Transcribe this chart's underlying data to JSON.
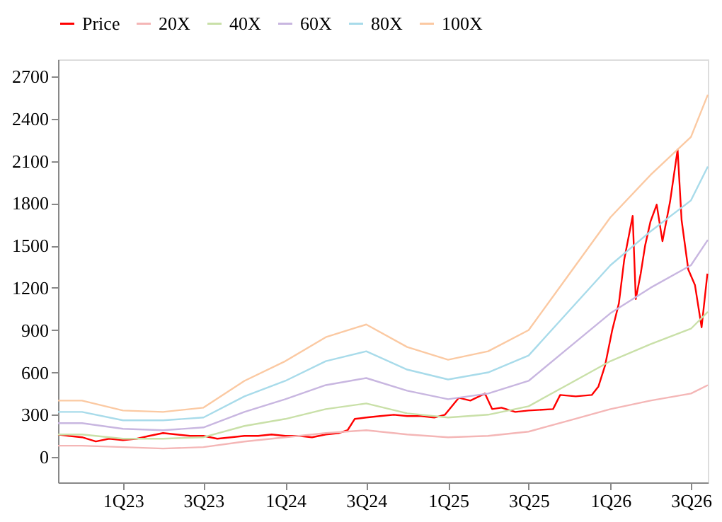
{
  "chart_data": {
    "type": "line",
    "xlim": [
      "2022-08-08",
      "2026-08-08"
    ],
    "xticks": [
      {
        "value": "2023-01-01",
        "label": "1Q23"
      },
      {
        "value": "2023-07-01",
        "label": "3Q23"
      },
      {
        "value": "2024-01-01",
        "label": "1Q24"
      },
      {
        "value": "2024-07-01",
        "label": "3Q24"
      },
      {
        "value": "2025-01-01",
        "label": "1Q25"
      },
      {
        "value": "2025-07-01",
        "label": "3Q25"
      },
      {
        "value": "2026-01-01",
        "label": "1Q26"
      },
      {
        "value": "2026-07-01",
        "label": "3Q26"
      }
    ],
    "ylim": [
      -180,
      2820
    ],
    "yticks": [
      0,
      300,
      600,
      900,
      1200,
      1500,
      1800,
      2100,
      2400,
      2700
    ],
    "grid": false,
    "legend": "top",
    "line_style": "solid",
    "marker": "none",
    "series": [
      {
        "name": "Price",
        "color": "#ff0000",
        "x": [
          "2022-08-08",
          "2022-09-01",
          "2022-10-01",
          "2022-11-01",
          "2022-12-01",
          "2023-01-01",
          "2023-02-01",
          "2023-03-01",
          "2023-04-01",
          "2023-05-01",
          "2023-06-01",
          "2023-07-01",
          "2023-08-01",
          "2023-09-01",
          "2023-10-01",
          "2023-11-01",
          "2023-12-01",
          "2024-01-01",
          "2024-02-01",
          "2024-03-01",
          "2024-04-01",
          "2024-05-01",
          "2024-05-20",
          "2024-06-05",
          "2024-07-01",
          "2024-08-01",
          "2024-09-01",
          "2024-10-01",
          "2024-11-01",
          "2024-12-01",
          "2024-12-25",
          "2025-01-25",
          "2025-02-20",
          "2025-03-25",
          "2025-04-10",
          "2025-05-01",
          "2025-06-01",
          "2025-07-01",
          "2025-08-25",
          "2025-09-10",
          "2025-10-15",
          "2025-11-20",
          "2025-12-05",
          "2025-12-20",
          "2026-01-05",
          "2026-01-20",
          "2026-02-01",
          "2026-02-20",
          "2026-02-27",
          "2026-03-10",
          "2026-03-20",
          "2026-04-01",
          "2026-04-15",
          "2026-04-28",
          "2026-05-15",
          "2026-06-01",
          "2026-06-10",
          "2026-06-25",
          "2026-07-10",
          "2026-07-25",
          "2026-08-07"
        ],
        "values": [
          160,
          150,
          140,
          110,
          130,
          120,
          130,
          150,
          170,
          160,
          150,
          150,
          130,
          140,
          150,
          150,
          160,
          150,
          150,
          140,
          160,
          170,
          190,
          270,
          280,
          290,
          300,
          290,
          290,
          280,
          300,
          420,
          400,
          450,
          340,
          350,
          320,
          330,
          340,
          440,
          430,
          440,
          500,
          650,
          900,
          1090,
          1400,
          1710,
          1120,
          1300,
          1500,
          1670,
          1790,
          1530,
          1810,
          2180,
          1680,
          1330,
          1220,
          920,
          1300
        ]
      },
      {
        "name": "20X",
        "color": "#f4b6b6",
        "values": [
          80,
          80,
          70,
          60,
          70,
          110,
          140,
          170,
          190,
          160,
          140,
          150,
          180,
          260,
          340,
          400,
          450,
          510
        ]
      },
      {
        "name": "40X",
        "color": "#c9e0a8",
        "values": [
          160,
          160,
          130,
          130,
          140,
          220,
          270,
          340,
          380,
          310,
          280,
          300,
          360,
          520,
          680,
          800,
          910,
          1030
        ]
      },
      {
        "name": "60X",
        "color": "#c8b6e0",
        "values": [
          240,
          240,
          200,
          190,
          210,
          320,
          410,
          510,
          560,
          470,
          410,
          450,
          540,
          780,
          1020,
          1200,
          1360,
          1540
        ]
      },
      {
        "name": "80X",
        "color": "#a8dbea",
        "values": [
          320,
          320,
          260,
          260,
          280,
          430,
          540,
          680,
          750,
          620,
          550,
          600,
          720,
          1040,
          1360,
          1600,
          1820,
          2060
        ]
      },
      {
        "name": "100X",
        "color": "#fbc9a2",
        "values": [
          400,
          400,
          330,
          320,
          350,
          540,
          680,
          850,
          940,
          780,
          690,
          750,
          900,
          1300,
          1700,
          2000,
          2270,
          2570
        ]
      }
    ],
    "x": [
      "2022-08-08",
      "2022-10-01",
      "2023-01-01",
      "2023-04-01",
      "2023-07-01",
      "2023-10-01",
      "2024-01-01",
      "2024-04-01",
      "2024-07-01",
      "2024-10-01",
      "2025-01-01",
      "2025-04-01",
      "2025-07-01",
      "2025-10-01",
      "2026-01-01",
      "2026-04-01",
      "2026-07-01",
      "2026-08-08"
    ]
  }
}
